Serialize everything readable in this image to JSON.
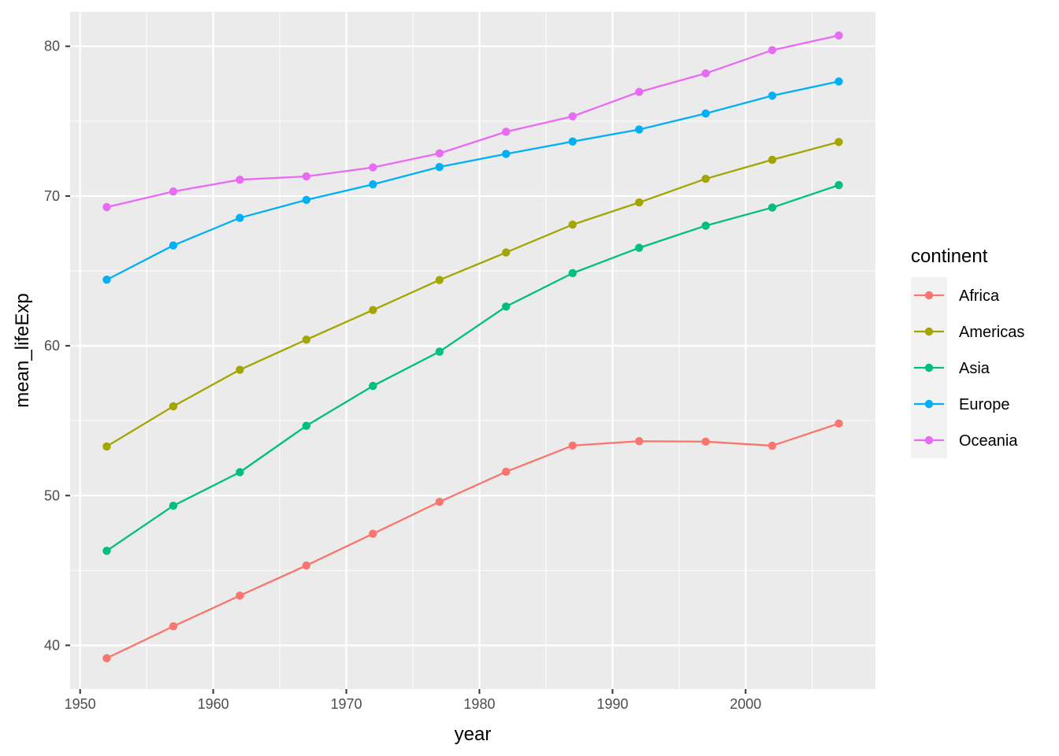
{
  "chart_data": {
    "type": "line",
    "xlabel": "year",
    "ylabel": "mean_lifeExp",
    "xlim": [
      1949.25,
      2009.75
    ],
    "ylim": [
      37.08,
      82.3
    ],
    "x_ticks": [
      1950,
      1960,
      1970,
      1980,
      1990,
      2000
    ],
    "y_ticks": [
      40,
      50,
      60,
      70,
      80
    ],
    "grid": true,
    "legend": {
      "title": "continent",
      "position": "right"
    },
    "x": [
      1952,
      1957,
      1962,
      1967,
      1972,
      1977,
      1982,
      1987,
      1992,
      1997,
      2002,
      2007
    ],
    "series": [
      {
        "name": "Africa",
        "color": "#F8766D",
        "values": [
          39.14,
          41.27,
          43.32,
          45.33,
          47.45,
          49.58,
          51.59,
          53.34,
          53.63,
          53.6,
          53.33,
          54.81
        ]
      },
      {
        "name": "Americas",
        "color": "#A3A500",
        "values": [
          53.28,
          55.96,
          58.4,
          60.41,
          62.39,
          64.39,
          66.23,
          68.09,
          69.57,
          71.15,
          72.42,
          73.61
        ]
      },
      {
        "name": "Asia",
        "color": "#00BF7D",
        "values": [
          46.31,
          49.32,
          51.56,
          54.66,
          57.32,
          59.61,
          62.62,
          64.85,
          66.54,
          68.02,
          69.23,
          70.73
        ]
      },
      {
        "name": "Europe",
        "color": "#00B0F6",
        "values": [
          64.41,
          66.7,
          68.54,
          69.74,
          70.78,
          71.94,
          72.81,
          73.64,
          74.44,
          75.51,
          76.7,
          77.65
        ]
      },
      {
        "name": "Oceania",
        "color": "#E76BF3",
        "values": [
          69.26,
          70.3,
          71.09,
          71.31,
          71.91,
          72.85,
          74.29,
          75.32,
          76.95,
          78.19,
          79.74,
          80.72
        ]
      }
    ]
  }
}
